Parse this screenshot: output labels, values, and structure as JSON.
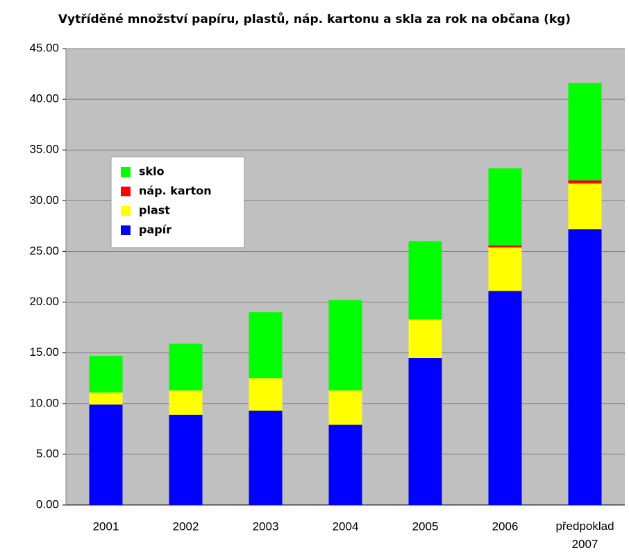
{
  "chart_data": {
    "type": "stacked_bar",
    "title": "Vytříděné množství papíru, plastů, náp. kartonu a skla za rok na občana (kg)",
    "categories": [
      "2001",
      "2002",
      "2003",
      "2004",
      "2005",
      "2006",
      "předpoklad 2007"
    ],
    "series": [
      {
        "name": "papír",
        "color": "#0000ff",
        "values": [
          9.9,
          8.9,
          9.3,
          7.9,
          14.5,
          21.1,
          27.2
        ]
      },
      {
        "name": "plast",
        "color": "#ffff00",
        "values": [
          1.2,
          2.4,
          3.2,
          3.4,
          3.8,
          4.3,
          4.5
        ]
      },
      {
        "name": "náp. karton",
        "color": "#ff0000",
        "values": [
          0,
          0,
          0,
          0,
          0,
          0.2,
          0.3
        ]
      },
      {
        "name": "sklo",
        "color": "#00ff00",
        "values": [
          3.6,
          4.6,
          6.5,
          8.9,
          7.7,
          7.6,
          9.6
        ]
      }
    ],
    "ylim": [
      0,
      45
    ],
    "yticks": [
      {
        "value": 0,
        "label": "0.00"
      },
      {
        "value": 5,
        "label": "5.00"
      },
      {
        "value": 10,
        "label": "10.00"
      },
      {
        "value": 15,
        "label": "15.00"
      },
      {
        "value": 20,
        "label": "20.00"
      },
      {
        "value": 25,
        "label": "25.00"
      },
      {
        "value": 30,
        "label": "30.00"
      },
      {
        "value": 35,
        "label": "35.00"
      },
      {
        "value": 40,
        "label": "40.00"
      },
      {
        "value": 45,
        "label": "45.00"
      }
    ],
    "grid": true,
    "legend": "upper left"
  }
}
